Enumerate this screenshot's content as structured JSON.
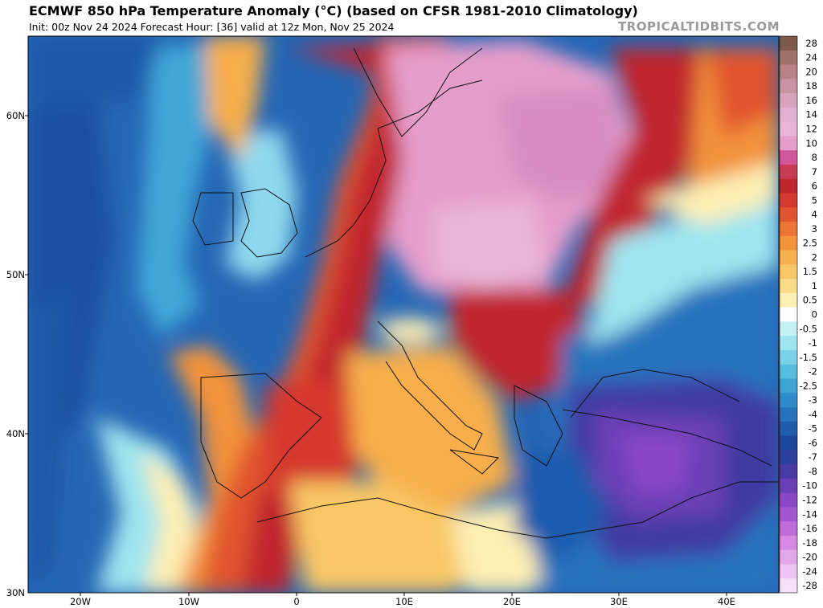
{
  "header": {
    "title": "ECMWF 850 hPa Temperature Anomaly (°C) (based on CFSR 1981-2010 Climatology)",
    "subtitle": "Init: 00z Nov 24 2024   Forecast Hour: [36]   valid at 12z Mon, Nov 25 2024",
    "brand": "TROPICALTIDBITS.COM"
  },
  "axes": {
    "lat_labels": [
      "60N",
      "50N",
      "40N",
      "30N"
    ],
    "lon_labels": [
      "20W",
      "10W",
      "0",
      "10E",
      "20E",
      "30E",
      "40E"
    ]
  },
  "colorbar": {
    "labels": [
      "28",
      "24",
      "20",
      "18",
      "16",
      "14",
      "12",
      "10",
      "8",
      "7",
      "6",
      "5",
      "4",
      "3",
      "2.5",
      "2",
      "1.5",
      "1",
      "0.5",
      "0",
      "-0.5",
      "-1",
      "-1.5",
      "-2",
      "-2.5",
      "-3",
      "-4",
      "-5",
      "-6",
      "-7",
      "-8",
      "-10",
      "-12",
      "-14",
      "-16",
      "-18",
      "-20",
      "-24",
      "-28"
    ],
    "colors": [
      "#7d5a4a",
      "#a0726a",
      "#b98385",
      "#c993a2",
      "#d8a3bd",
      "#e2b0cf",
      "#eab6d8",
      "#e59dcb",
      "#d3569a",
      "#c93a55",
      "#c1272f",
      "#d5392f",
      "#e2552f",
      "#ec7434",
      "#f3923b",
      "#f7ae4c",
      "#f9c765",
      "#fbdc86",
      "#fdeeb3",
      "#ffffff",
      "#c6f1f4",
      "#9ee5ef",
      "#79d3e8",
      "#54bde0",
      "#3ea4d6",
      "#2f8bca",
      "#2673bd",
      "#1f5cae",
      "#18479c",
      "#2f3f9e",
      "#4a3aa6",
      "#6a3fb5",
      "#8a47c6",
      "#a655d2",
      "#c06ddc",
      "#d588e4",
      "#e3a5ec",
      "#eec3f2",
      "#f7e0f8"
    ]
  },
  "colors": {
    "ocean_base": "#1f5fae",
    "warm_core": "#c1272f",
    "pink_region": "#e59dcb",
    "purple_region": "#6a3fb5"
  }
}
